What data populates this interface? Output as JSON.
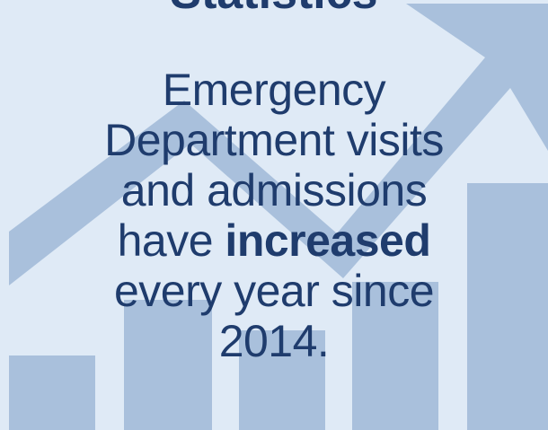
{
  "infographic": {
    "heading": "Statistics",
    "message": {
      "line1": "Emergency",
      "line2": "Department visits",
      "line3": "and admissions",
      "line4_prefix": "have ",
      "line4_emphasis": "increased",
      "line5": "every year since",
      "line6": "2014."
    },
    "background": {
      "icon": "rising-bar-chart-with-arrow",
      "colors": {
        "page": "#dfeaf6",
        "graphic": "#a9c0dc",
        "text": "#1f3c6d"
      }
    }
  }
}
